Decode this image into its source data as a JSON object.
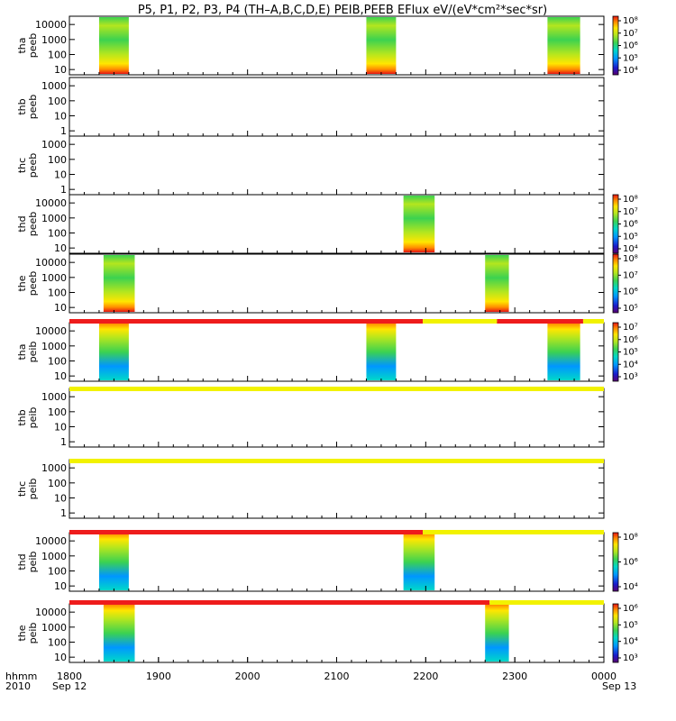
{
  "title": "P5, P1, P2, P3, P4 (TH–A,B,C,D,E) PEIB,PEEB EFlux eV/(eV*cm²*sec*sr)",
  "time_axis": {
    "ticks": [
      "1800",
      "1900",
      "2000",
      "2100",
      "2200",
      "2300",
      "0000"
    ],
    "start_date": "Sep 12",
    "end_date": "Sep 13",
    "corner_label_1": "hhmm",
    "corner_label_2": "2010"
  },
  "chart_data": {
    "type": "heatmap",
    "x_unit": "hhmm",
    "x_range": [
      "2010-09-12 18:00",
      "2010-09-13 00:00"
    ],
    "y_scale": "log",
    "panels": [
      {
        "probe": "tha",
        "product": "peeb",
        "yticks": [
          "10",
          "100",
          "1000",
          "10000"
        ],
        "data_intervals": [
          [
            "18:20",
            "18:40"
          ],
          [
            "21:20",
            "21:40"
          ],
          [
            "23:22",
            "23:44"
          ]
        ],
        "colorbar": {
          "ticks": [
            "10⁴",
            "10⁵",
            "10⁶",
            "10⁷",
            "10⁸"
          ]
        }
      },
      {
        "probe": "thb",
        "product": "peeb",
        "yticks": [
          "1",
          "10",
          "100",
          "1000"
        ],
        "data_intervals": []
      },
      {
        "probe": "thc",
        "product": "peeb",
        "yticks": [
          "1",
          "10",
          "100",
          "1000"
        ],
        "data_intervals": []
      },
      {
        "probe": "thd",
        "product": "peeb",
        "yticks": [
          "10",
          "100",
          "1000",
          "10000"
        ],
        "data_intervals": [
          [
            "21:45",
            "22:06"
          ]
        ],
        "colorbar": {
          "ticks": [
            "10⁴",
            "10⁵",
            "10⁶",
            "10⁷",
            "10⁸"
          ]
        }
      },
      {
        "probe": "the",
        "product": "peeb",
        "yticks": [
          "10",
          "100",
          "1000",
          "10000"
        ],
        "data_intervals": [
          [
            "18:23",
            "18:44"
          ],
          [
            "22:40",
            "22:56"
          ]
        ],
        "colorbar": {
          "ticks": [
            "10⁵",
            "10⁶",
            "10⁷",
            "10⁸"
          ]
        }
      },
      {
        "probe": "tha",
        "product": "peib",
        "yticks": [
          "10",
          "100",
          "1000",
          "10000"
        ],
        "data_intervals": [
          [
            "18:20",
            "18:40"
          ],
          [
            "21:20",
            "21:40"
          ],
          [
            "23:22",
            "23:44"
          ]
        ],
        "colorbar": {
          "ticks": [
            "10³",
            "10⁴",
            "10⁵",
            "10⁶",
            "10⁷"
          ]
        }
      },
      {
        "probe": "thb",
        "product": "peib",
        "yticks": [
          "1",
          "10",
          "100",
          "1000"
        ],
        "data_intervals": []
      },
      {
        "probe": "thc",
        "product": "peib",
        "yticks": [
          "1",
          "10",
          "100",
          "1000"
        ],
        "data_intervals": []
      },
      {
        "probe": "thd",
        "product": "peib",
        "yticks": [
          "10",
          "100",
          "1000",
          "10000"
        ],
        "data_intervals": [
          [
            "18:20",
            "18:40"
          ],
          [
            "21:45",
            "22:06"
          ]
        ],
        "colorbar": {
          "ticks": [
            "10⁴",
            "10⁶",
            "10⁸"
          ]
        }
      },
      {
        "probe": "the",
        "product": "peib",
        "yticks": [
          "10",
          "100",
          "1000",
          "10000"
        ],
        "data_intervals": [
          [
            "18:23",
            "18:44"
          ],
          [
            "22:40",
            "22:56"
          ]
        ],
        "colorbar": {
          "ticks": [
            "10³",
            "10⁴",
            "10⁵",
            "10⁶"
          ]
        }
      }
    ],
    "mode_bars": [
      {
        "between": [
          "the peeb",
          "tha peib"
        ],
        "segments": [
          {
            "start": "18:00",
            "end": "21:58",
            "color": "#ee1c1c"
          },
          {
            "start": "21:58",
            "end": "22:48",
            "color": "#f2f200"
          },
          {
            "start": "22:48",
            "end": "23:46",
            "color": "#ee1c1c"
          },
          {
            "start": "23:46",
            "end": "24:00",
            "color": "#f2f200"
          }
        ]
      },
      {
        "between": [
          "tha peib",
          "thb peib"
        ],
        "segments": [
          {
            "start": "18:00",
            "end": "24:00",
            "color": "#f2f200"
          }
        ]
      },
      {
        "between": [
          "thb peib",
          "thc peib"
        ],
        "segments": [
          {
            "start": "18:00",
            "end": "24:00",
            "color": "#f2f200"
          }
        ]
      },
      {
        "between": [
          "thc peib",
          "thd peib"
        ],
        "segments": [
          {
            "start": "18:00",
            "end": "21:58",
            "color": "#ee1c1c"
          },
          {
            "start": "21:58",
            "end": "24:00",
            "color": "#f2f200"
          }
        ]
      },
      {
        "between": [
          "thd peib",
          "the peib"
        ],
        "segments": [
          {
            "start": "18:00",
            "end": "22:43",
            "color": "#ee1c1c"
          },
          {
            "start": "22:43",
            "end": "24:00",
            "color": "#f2f200"
          }
        ]
      }
    ],
    "colormap": [
      "#5a0070",
      "#1a1acc",
      "#0096ff",
      "#00d8c8",
      "#3cd250",
      "#b4e61e",
      "#ffe600",
      "#ff8c00",
      "#e61414"
    ]
  }
}
